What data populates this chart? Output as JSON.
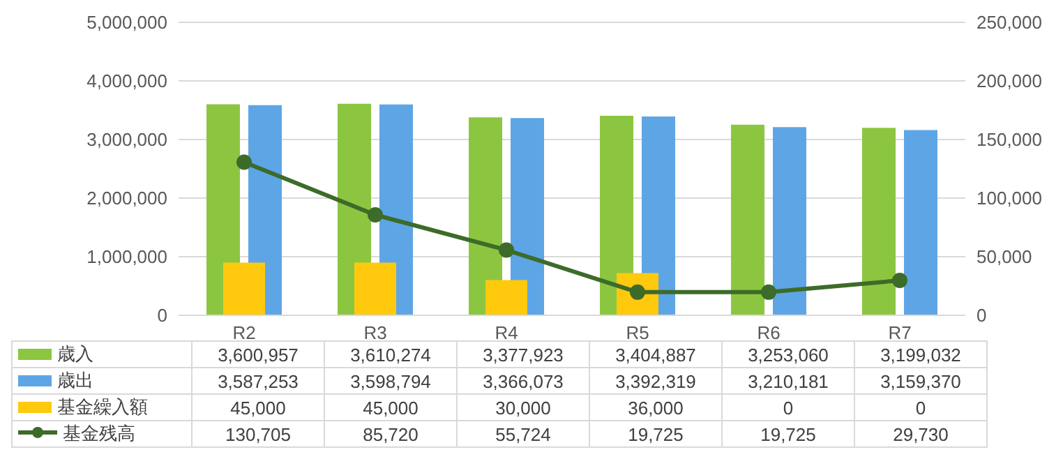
{
  "chart_data": {
    "type": "bar",
    "categories": [
      "R2",
      "R3",
      "R4",
      "R5",
      "R6",
      "R7"
    ],
    "series": [
      {
        "name": "歳入",
        "color": "#8cc640",
        "values": [
          3600957,
          3610274,
          3377923,
          3404887,
          3253060,
          3199032
        ],
        "value_labels": [
          "3,600,957",
          "3,610,274",
          "3,377,923",
          "3,404,887",
          "3,253,060",
          "3,199,032"
        ]
      },
      {
        "name": "歳出",
        "color": "#5ea5e6",
        "values": [
          3587253,
          3598794,
          3366073,
          3392319,
          3210181,
          3159370
        ],
        "value_labels": [
          "3,587,253",
          "3,598,794",
          "3,366,073",
          "3,392,319",
          "3,210,181",
          "3,159,370"
        ]
      },
      {
        "name": "基金繰入額",
        "axis": "y2",
        "color": "#ffc90e",
        "values": [
          45000,
          45000,
          30000,
          36000,
          0,
          0
        ],
        "value_labels": [
          "45,000",
          "45,000",
          "30,000",
          "36,000",
          "0",
          "0"
        ]
      },
      {
        "name": "基金残高",
        "type": "line",
        "axis": "y2",
        "color": "#3d6b29",
        "values": [
          130705,
          85720,
          55724,
          19725,
          19725,
          29730
        ],
        "value_labels": [
          "130,705",
          "85,720",
          "55,724",
          "19,725",
          "19,725",
          "29,730"
        ]
      }
    ],
    "ylim": [
      0,
      5000000
    ],
    "yticks": [
      0,
      {
        "value": 1000000,
        "label": "1,000,000"
      },
      {
        "value": 2000000,
        "label": "2,000,000"
      },
      {
        "value": 3000000,
        "label": "3,000,000"
      },
      {
        "value": 4000000,
        "label": "4,000,000"
      },
      {
        "value": 5000000,
        "label": "5,000,000"
      }
    ],
    "y2lim": [
      0,
      250000
    ],
    "y2ticks": [
      0,
      {
        "value": 50000,
        "label": "50,000"
      },
      {
        "value": 100000,
        "label": "100,000"
      },
      {
        "value": 150000,
        "label": "150,000"
      },
      {
        "value": 200000,
        "label": "200,000"
      },
      {
        "value": 250000,
        "label": "250,000"
      }
    ],
    "grid": "y",
    "legend": "bottom",
    "marker": "circle"
  }
}
